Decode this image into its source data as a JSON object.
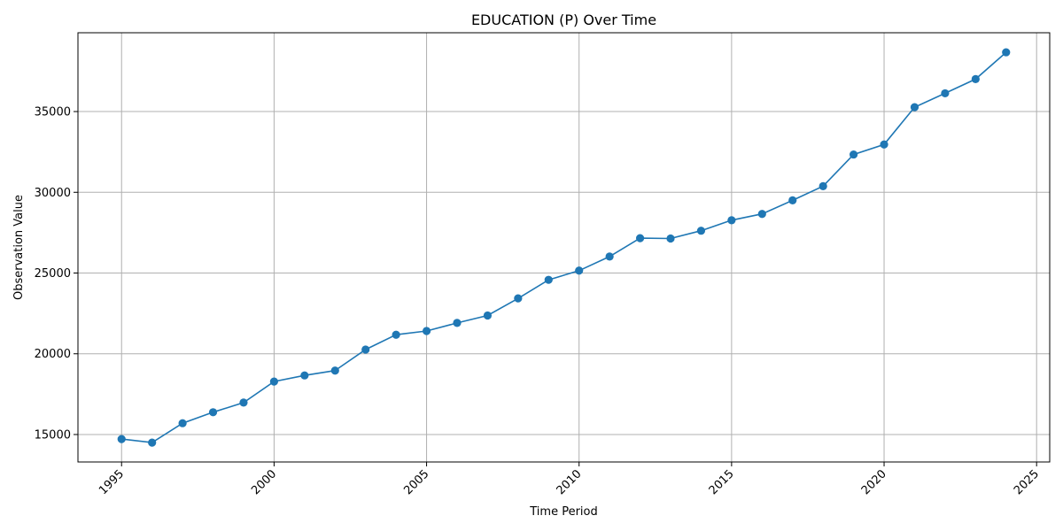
{
  "chart_data": {
    "type": "line",
    "title": "EDUCATION (P) Over Time",
    "xlabel": "Time Period",
    "ylabel": "Observation Value",
    "xlim": [
      1993.57,
      2025.43
    ],
    "ylim": [
      13300,
      39880
    ],
    "x_ticks": [
      1995,
      2000,
      2005,
      2010,
      2015,
      2020,
      2025
    ],
    "y_ticks": [
      15000,
      20000,
      25000,
      30000,
      35000
    ],
    "grid": true,
    "color": "#1f77b4",
    "marker": "circle",
    "series": [
      {
        "x": [
          1995,
          1996,
          1997,
          1998,
          1999,
          2000,
          2001,
          2002,
          2003,
          2004,
          2005,
          2006,
          2007,
          2008,
          2009,
          2010,
          2011,
          2012,
          2013,
          2014,
          2015,
          2016,
          2017,
          2018,
          2019,
          2020,
          2021,
          2022,
          2023,
          2024
        ],
        "values": [
          14720,
          14500,
          15700,
          16380,
          16980,
          18280,
          18660,
          18960,
          20260,
          21180,
          21410,
          21910,
          22370,
          23430,
          24580,
          25150,
          26020,
          27160,
          27140,
          27620,
          28270,
          28660,
          29500,
          30380,
          32340,
          32960,
          35270,
          36130,
          37010,
          38670
        ]
      }
    ]
  }
}
